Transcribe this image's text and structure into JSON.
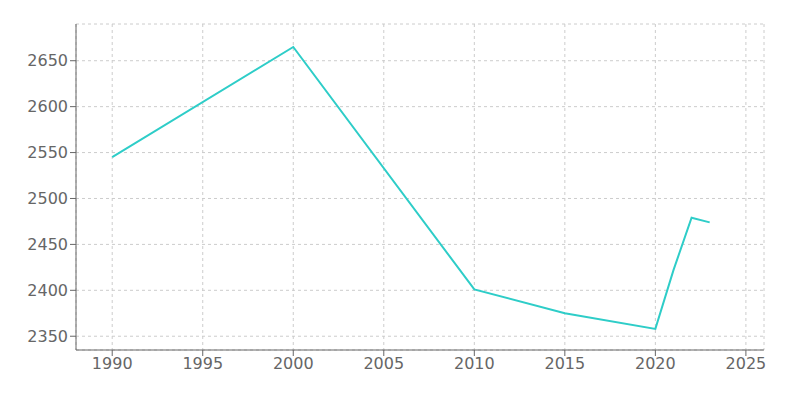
{
  "chart_data": {
    "type": "line",
    "x": [
      1990,
      2000,
      2010,
      2015,
      2020,
      2021,
      2022,
      2023
    ],
    "values": [
      2545,
      2665,
      2401,
      2375,
      2358,
      2422,
      2479,
      2474
    ],
    "color": "#2ecdc8",
    "xlim": [
      1988,
      2026
    ],
    "ylim": [
      2335,
      2690
    ],
    "xticks": [
      1990,
      1995,
      2000,
      2005,
      2010,
      2015,
      2020,
      2025
    ],
    "yticks": [
      2350,
      2400,
      2450,
      2500,
      2550,
      2600,
      2650
    ],
    "grid": true
  }
}
